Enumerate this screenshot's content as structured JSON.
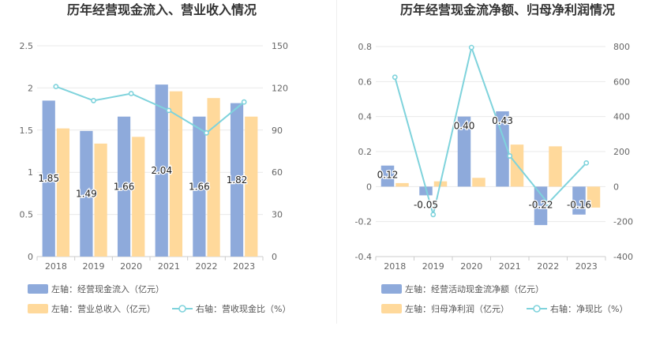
{
  "chart_data": [
    {
      "type": "bar",
      "title": "历年经营现金流入、营业收入情况",
      "categories": [
        "2018",
        "2019",
        "2020",
        "2021",
        "2022",
        "2023"
      ],
      "y_left_ticks": [
        "0",
        "0.5",
        "1",
        "1.5",
        "2",
        "2.5"
      ],
      "y_right_ticks": [
        "0",
        "30",
        "60",
        "90",
        "120",
        "150"
      ],
      "ylim_left": [
        0,
        2.5
      ],
      "ylim_right": [
        0,
        150
      ],
      "grid": true,
      "legend_position": "bottom",
      "series": [
        {
          "name": "左轴：经营现金流入（亿元）",
          "axis": "left",
          "kind": "bar",
          "color": "#8eaadb",
          "values": [
            1.85,
            1.49,
            1.66,
            2.04,
            1.66,
            1.82
          ],
          "labels": [
            "1.85",
            "1.49",
            "1.66",
            "2.04",
            "1.66",
            "1.82"
          ]
        },
        {
          "name": "左轴：营业总收入（亿元）",
          "axis": "left",
          "kind": "bar",
          "color": "#ffd99b",
          "values": [
            1.52,
            1.34,
            1.42,
            1.96,
            1.88,
            1.66
          ]
        },
        {
          "name": "右轴：营收现金比（%）",
          "axis": "right",
          "kind": "line",
          "color": "#7fd3dc",
          "values": [
            121,
            111,
            116,
            104,
            88,
            110
          ]
        }
      ]
    },
    {
      "type": "bar",
      "title": "历年经营现金流净额、归母净利润情况",
      "categories": [
        "2018",
        "2019",
        "2020",
        "2021",
        "2022",
        "2023"
      ],
      "y_left_ticks": [
        "-0.4",
        "-0.2",
        "0",
        "0.2",
        "0.4",
        "0.6",
        "0.8"
      ],
      "y_right_ticks": [
        "-400",
        "-200",
        "0",
        "200",
        "400",
        "600",
        "800"
      ],
      "ylim_left": [
        -0.4,
        0.8
      ],
      "ylim_right": [
        -400,
        800
      ],
      "grid": true,
      "legend_position": "bottom",
      "series": [
        {
          "name": "左轴：经营活动现金流净额（亿元）",
          "axis": "left",
          "kind": "bar",
          "color": "#8eaadb",
          "values": [
            0.12,
            -0.05,
            0.4,
            0.43,
            -0.22,
            -0.16
          ],
          "labels": [
            "0.12",
            "-0.05",
            "0.40",
            "0.43",
            "-0.22",
            "-0.16"
          ]
        },
        {
          "name": "左轴：归母净利润（亿元）",
          "axis": "left",
          "kind": "bar",
          "color": "#ffd99b",
          "values": [
            0.02,
            0.03,
            0.05,
            0.24,
            0.23,
            -0.12
          ]
        },
        {
          "name": "右轴：净现比（%）",
          "axis": "right",
          "kind": "line",
          "color": "#7fd3dc",
          "values": [
            625,
            -160,
            795,
            175,
            -95,
            135
          ]
        }
      ]
    }
  ]
}
